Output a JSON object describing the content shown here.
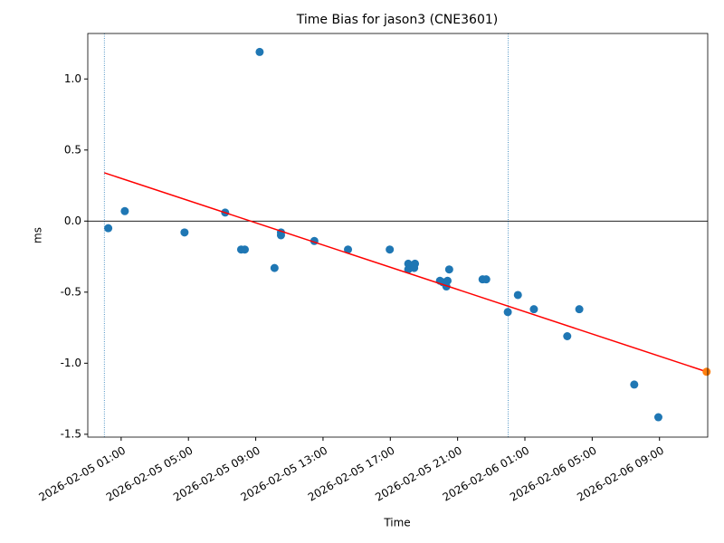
{
  "chart_data": {
    "type": "scatter",
    "title": "Time Bias for jason3 (CNE3601)",
    "xlabel": "Time",
    "ylabel": "ms",
    "xlim": [
      "2026-02-04 23:01",
      "2026-02-06 11:52"
    ],
    "xticks": [
      "2026-02-05 01:00",
      "2026-02-05 05:00",
      "2026-02-05 09:00",
      "2026-02-05 13:00",
      "2026-02-05 17:00",
      "2026-02-05 21:00",
      "2026-02-06 01:00",
      "2026-02-06 05:00",
      "2026-02-06 09:00"
    ],
    "ylim": [
      -1.52,
      1.32
    ],
    "yticks": [
      {
        "value": -1.5,
        "label": "-1.5"
      },
      {
        "value": -1,
        "label": "-1.0"
      },
      {
        "value": -0.5,
        "label": "-0.5"
      },
      {
        "value": 0,
        "label": "0.0"
      },
      {
        "value": 0.5,
        "label": "0.5"
      },
      {
        "value": 1,
        "label": "1.0"
      }
    ],
    "vlines": [
      "2026-02-05 00:00",
      "2026-02-06 00:00"
    ],
    "vline_color": "#1f77b4",
    "hlines": [
      0
    ],
    "hline_color": "#000000",
    "series": [
      {
        "type": "scatter",
        "color": "#1f77b4",
        "x": [
          "2026-02-05 00:14",
          "2026-02-05 01:13",
          "2026-02-05 04:46",
          "2026-02-05 07:11",
          "2026-02-05 08:08",
          "2026-02-05 08:21",
          "2026-02-05 09:14",
          "2026-02-05 10:07",
          "2026-02-05 10:30",
          "2026-02-05 10:30",
          "2026-02-05 12:29",
          "2026-02-05 14:29",
          "2026-02-05 16:58",
          "2026-02-05 18:04",
          "2026-02-05 18:04",
          "2026-02-05 18:28",
          "2026-02-05 18:25",
          "2026-02-05 19:57",
          "2026-02-05 20:07",
          "2026-02-05 20:20",
          "2026-02-05 20:24",
          "2026-02-05 20:30",
          "2026-02-05 22:29",
          "2026-02-05 22:42",
          "2026-02-05 23:59",
          "2026-02-06 00:35",
          "2026-02-06 01:32",
          "2026-02-06 03:31",
          "2026-02-06 04:14",
          "2026-02-06 07:30",
          "2026-02-06 08:56"
        ],
        "values": [
          -0.05,
          0.07,
          -0.08,
          0.06,
          -0.2,
          -0.2,
          1.19,
          -0.33,
          -0.08,
          -0.1,
          -0.14,
          -0.2,
          -0.2,
          -0.3,
          -0.34,
          -0.3,
          -0.33,
          -0.42,
          -0.43,
          -0.46,
          -0.42,
          -0.34,
          -0.41,
          -0.41,
          -0.64,
          -0.52,
          -0.62,
          -0.81,
          -0.62,
          -1.15,
          -1.38
        ]
      },
      {
        "type": "line",
        "color": "#ff0000",
        "x": [
          "2026-02-05 00:00",
          "2026-02-06 11:48"
        ],
        "values": [
          0.34,
          -1.06
        ]
      },
      {
        "type": "scatter",
        "color": "#ff7f0e",
        "x": [
          "2026-02-06 11:48"
        ],
        "values": [
          -1.06
        ]
      }
    ]
  }
}
